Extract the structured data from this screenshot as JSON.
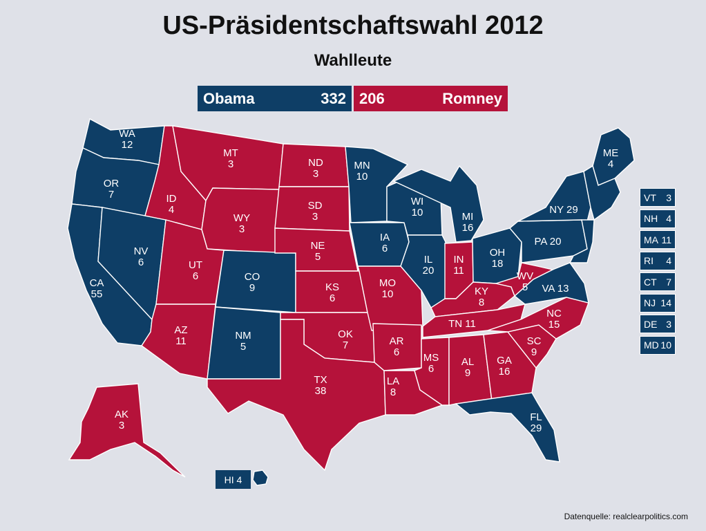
{
  "title": "US-Präsidentschaftswahl 2012",
  "subtitle": "Wahlleute",
  "tally": {
    "dem_name": "Obama",
    "dem_votes": "332",
    "rep_votes": "206",
    "rep_name": "Romney"
  },
  "colors": {
    "obama": "#0e3e66",
    "romney": "#b5123a",
    "background": "#dfe1e8"
  },
  "states": [
    {
      "code": "WA",
      "ev": "12",
      "winner": "obama"
    },
    {
      "code": "OR",
      "ev": "7",
      "winner": "obama"
    },
    {
      "code": "CA",
      "ev": "55",
      "winner": "obama"
    },
    {
      "code": "NV",
      "ev": "6",
      "winner": "obama"
    },
    {
      "code": "ID",
      "ev": "4",
      "winner": "romney"
    },
    {
      "code": "MT",
      "ev": "3",
      "winner": "romney"
    },
    {
      "code": "WY",
      "ev": "3",
      "winner": "romney"
    },
    {
      "code": "UT",
      "ev": "6",
      "winner": "romney"
    },
    {
      "code": "AZ",
      "ev": "11",
      "winner": "romney"
    },
    {
      "code": "CO",
      "ev": "9",
      "winner": "obama"
    },
    {
      "code": "NM",
      "ev": "5",
      "winner": "obama"
    },
    {
      "code": "ND",
      "ev": "3",
      "winner": "romney"
    },
    {
      "code": "SD",
      "ev": "3",
      "winner": "romney"
    },
    {
      "code": "NE",
      "ev": "5",
      "winner": "romney"
    },
    {
      "code": "KS",
      "ev": "6",
      "winner": "romney"
    },
    {
      "code": "OK",
      "ev": "7",
      "winner": "romney"
    },
    {
      "code": "TX",
      "ev": "38",
      "winner": "romney"
    },
    {
      "code": "MN",
      "ev": "10",
      "winner": "obama"
    },
    {
      "code": "IA",
      "ev": "6",
      "winner": "obama"
    },
    {
      "code": "MO",
      "ev": "10",
      "winner": "romney"
    },
    {
      "code": "AR",
      "ev": "6",
      "winner": "romney"
    },
    {
      "code": "LA",
      "ev": "8",
      "winner": "romney"
    },
    {
      "code": "WI",
      "ev": "10",
      "winner": "obama"
    },
    {
      "code": "IL",
      "ev": "20",
      "winner": "obama"
    },
    {
      "code": "MI",
      "ev": "16",
      "winner": "obama"
    },
    {
      "code": "IN",
      "ev": "11",
      "winner": "romney"
    },
    {
      "code": "OH",
      "ev": "18",
      "winner": "obama"
    },
    {
      "code": "KY",
      "ev": "8",
      "winner": "romney"
    },
    {
      "code": "TN",
      "ev": "11",
      "winner": "romney"
    },
    {
      "code": "MS",
      "ev": "6",
      "winner": "romney"
    },
    {
      "code": "AL",
      "ev": "9",
      "winner": "romney"
    },
    {
      "code": "GA",
      "ev": "16",
      "winner": "romney"
    },
    {
      "code": "FL",
      "ev": "29",
      "winner": "obama"
    },
    {
      "code": "SC",
      "ev": "9",
      "winner": "romney"
    },
    {
      "code": "NC",
      "ev": "15",
      "winner": "romney"
    },
    {
      "code": "VA",
      "ev": "13",
      "winner": "obama"
    },
    {
      "code": "WV",
      "ev": "5",
      "winner": "romney"
    },
    {
      "code": "PA",
      "ev": "20",
      "winner": "obama"
    },
    {
      "code": "NY",
      "ev": "29",
      "winner": "obama"
    },
    {
      "code": "ME",
      "ev": "4",
      "winner": "obama"
    },
    {
      "code": "AK",
      "ev": "3",
      "winner": "romney"
    }
  ],
  "northeast_boxes": [
    {
      "code": "VT",
      "ev": "3"
    },
    {
      "code": "NH",
      "ev": "4"
    },
    {
      "code": "MA",
      "ev": "11"
    },
    {
      "code": "RI",
      "ev": "4"
    },
    {
      "code": "CT",
      "ev": "7"
    },
    {
      "code": "NJ",
      "ev": "14"
    },
    {
      "code": "DE",
      "ev": "3"
    },
    {
      "code": "MD",
      "ev": "10"
    }
  ],
  "hawaii": {
    "code": "HI",
    "ev": "4"
  },
  "source": "Datenquelle: realclearpolitics.com"
}
